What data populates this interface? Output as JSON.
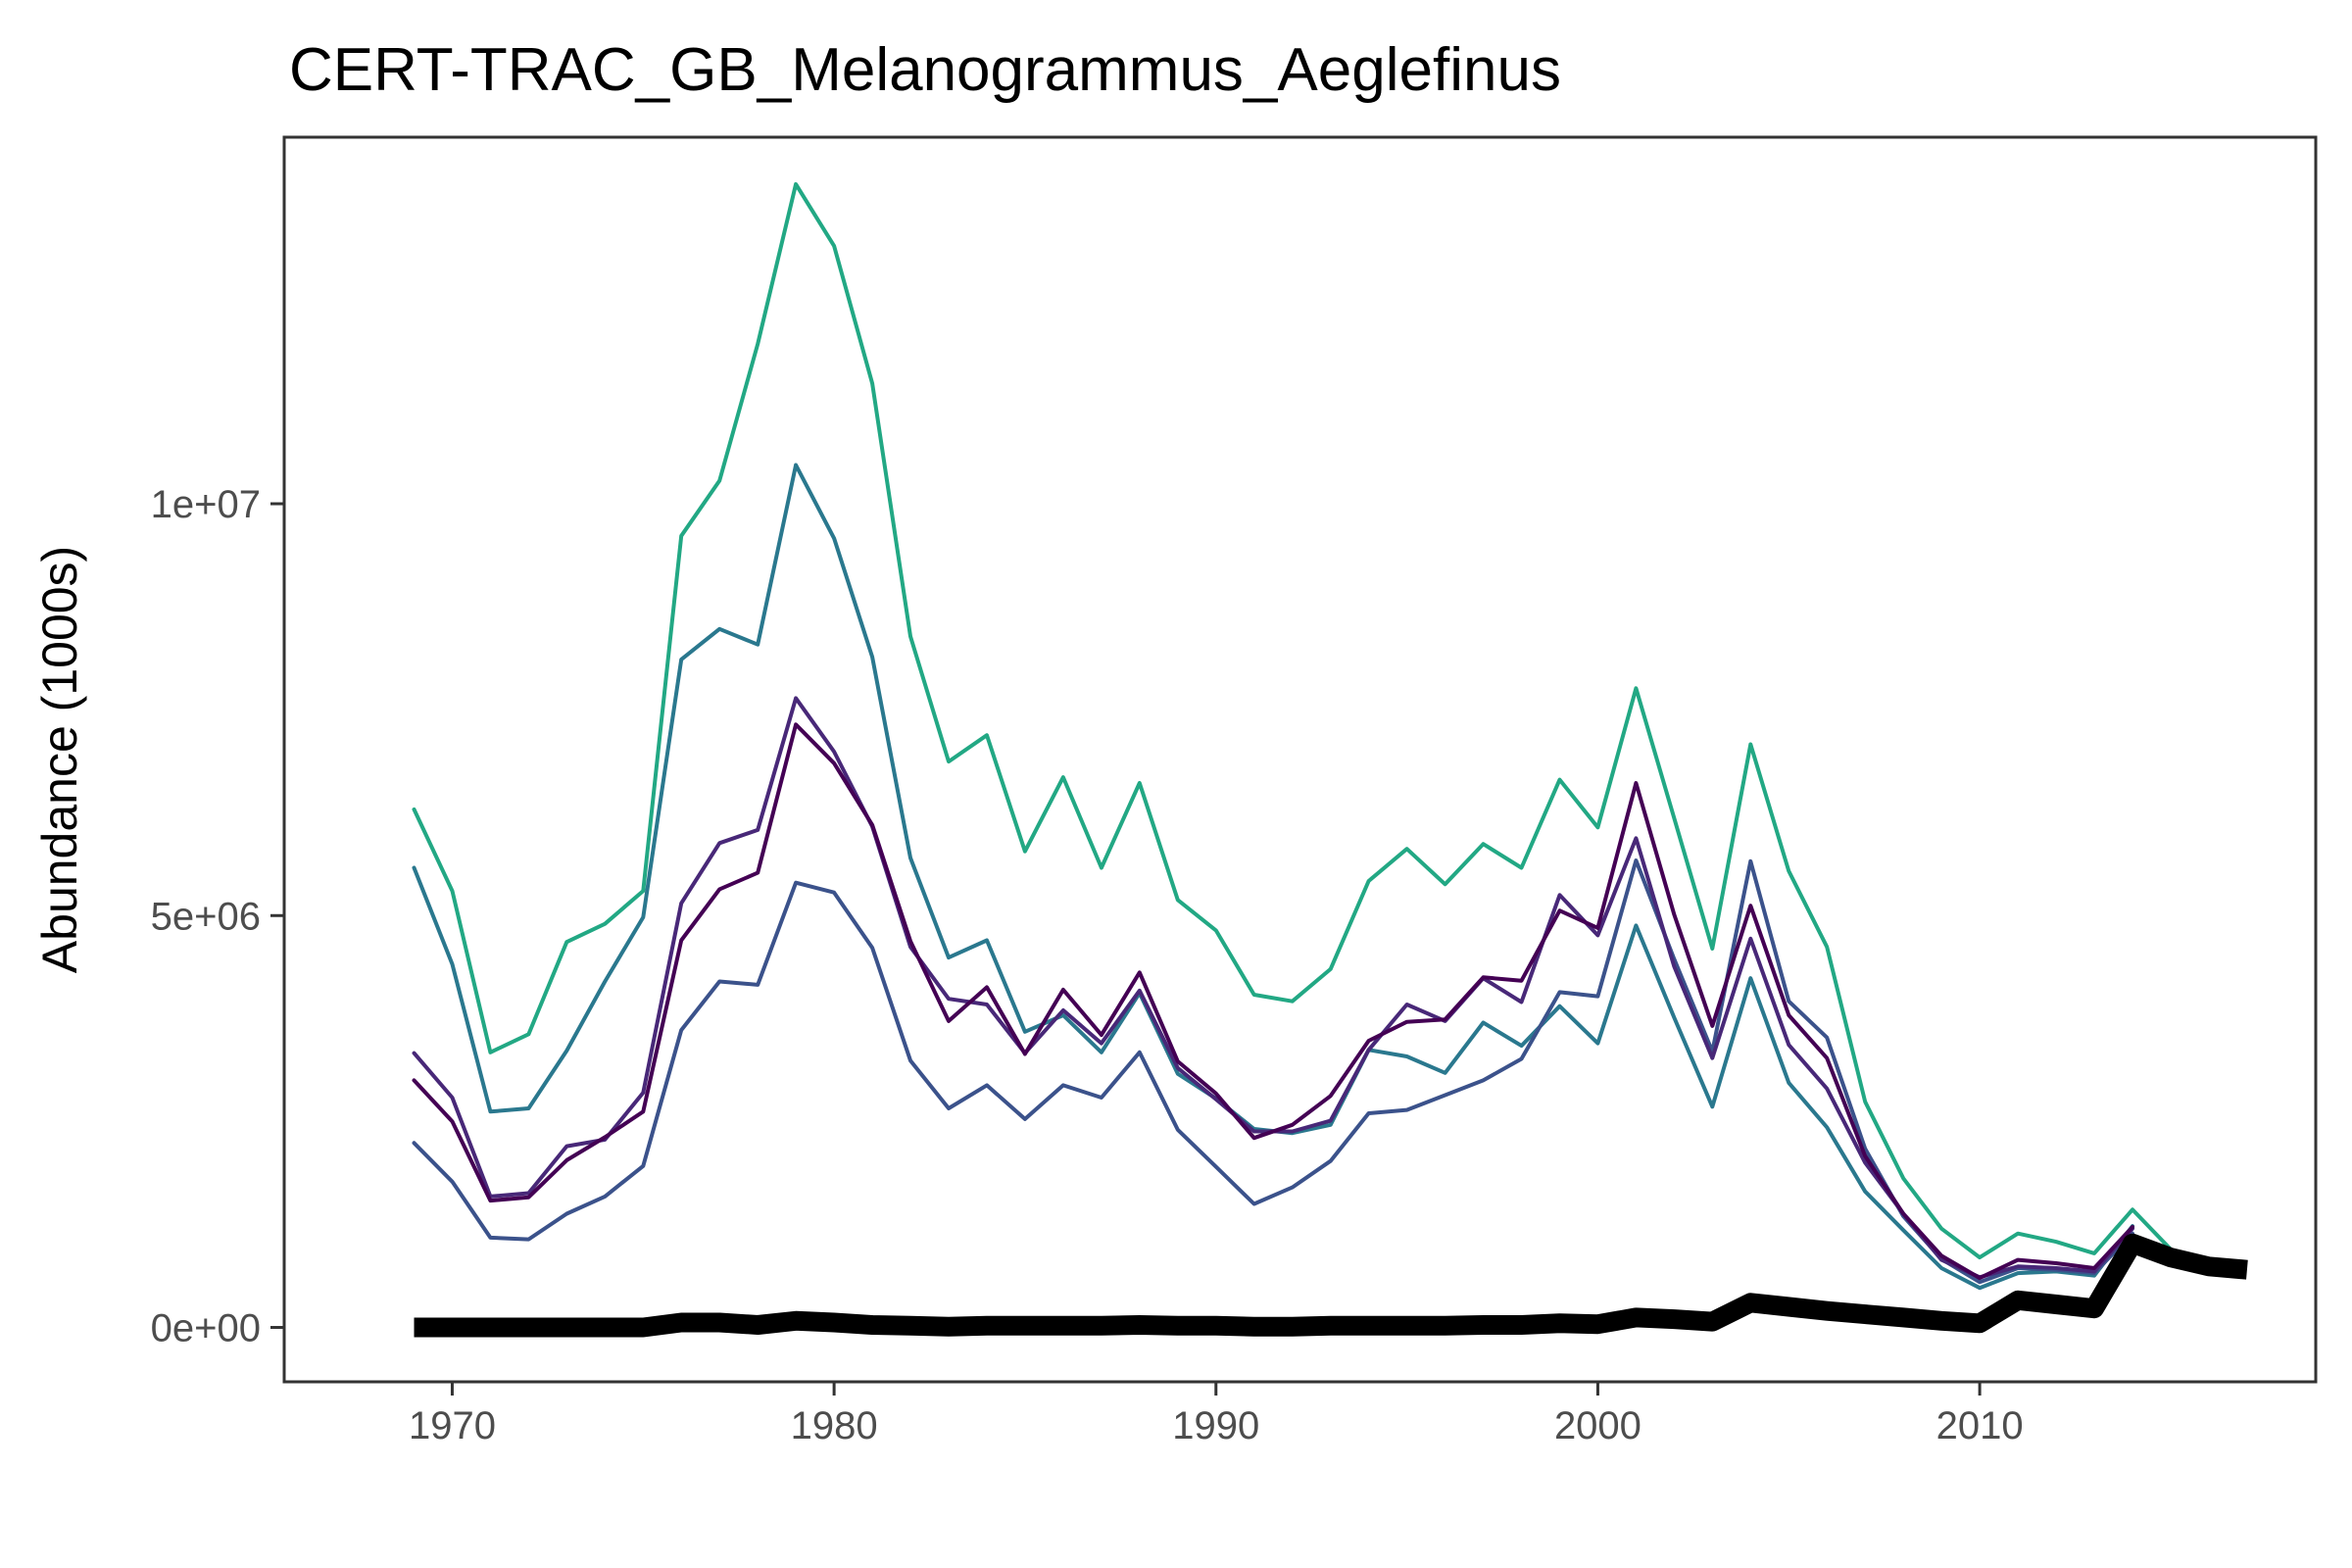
{
  "chart_data": {
    "type": "line",
    "title": "CERT-TRAC_GB_Melanogrammus_Aeglefinus",
    "xlabel": "",
    "ylabel": "Abundance (1000s)",
    "xlim": [
      1965.6,
      2018.8
    ],
    "ylim": [
      -660000,
      14450000
    ],
    "x_ticks": [
      1970,
      1980,
      1990,
      2000,
      2010
    ],
    "x_tick_labels": [
      "1970",
      "1980",
      "1990",
      "2000",
      "2010"
    ],
    "y_ticks": [
      0,
      5000000,
      10000000
    ],
    "y_tick_labels": [
      "0e+00",
      "5e+06",
      "1e+07"
    ],
    "grid": false,
    "legend": "none",
    "series": [
      {
        "name": "series-1",
        "color": "#22A884",
        "x": [
          1969,
          1970,
          1971,
          1972,
          1973,
          1974,
          1975,
          1976,
          1977,
          1978,
          1979,
          1980,
          1981,
          1982,
          1983,
          1984,
          1985,
          1986,
          1987,
          1988,
          1989,
          1990,
          1991,
          1992,
          1993,
          1994,
          1995,
          1996,
          1997,
          1998,
          1999,
          2000,
          2001,
          2002,
          2003,
          2004,
          2005,
          2006,
          2007,
          2008,
          2009,
          2010,
          2011,
          2012,
          2013,
          2014,
          2015
        ],
        "values": [
          6290000,
          5300000,
          3340000,
          3560000,
          4680000,
          4900000,
          5300000,
          9610000,
          10280000,
          11940000,
          13880000,
          13130000,
          11460000,
          8390000,
          6870000,
          7190000,
          5780000,
          6680000,
          5580000,
          6610000,
          5190000,
          4820000,
          4040000,
          3960000,
          4350000,
          5420000,
          5810000,
          5380000,
          5870000,
          5580000,
          6650000,
          6070000,
          7760000,
          6180000,
          4600000,
          7080000,
          5540000,
          4620000,
          2740000,
          1810000,
          1200000,
          850000,
          1140000,
          1040000,
          900000,
          1430000,
          950000
        ]
      },
      {
        "name": "series-2",
        "color": "#2A788E",
        "x": [
          1969,
          1970,
          1971,
          1972,
          1973,
          1974,
          1975,
          1976,
          1977,
          1978,
          1979,
          1980,
          1981,
          1982,
          1983,
          1984,
          1985,
          1986,
          1987,
          1988,
          1989,
          1990,
          1991,
          1992,
          1993,
          1994,
          1995,
          1996,
          1997,
          1998,
          1999,
          2000,
          2001,
          2002,
          2003,
          2004,
          2005,
          2006,
          2007,
          2008,
          2009,
          2010,
          2011,
          2012,
          2013,
          2014
        ],
        "values": [
          5580000,
          4410000,
          2620000,
          2660000,
          3360000,
          4200000,
          4980000,
          8110000,
          8480000,
          8290000,
          10470000,
          9580000,
          8140000,
          5700000,
          4490000,
          4700000,
          3590000,
          3790000,
          3340000,
          4060000,
          3080000,
          2780000,
          2410000,
          2360000,
          2460000,
          3370000,
          3290000,
          3090000,
          3700000,
          3420000,
          3900000,
          3450000,
          4880000,
          3760000,
          2680000,
          4240000,
          2970000,
          2430000,
          1650000,
          1180000,
          720000,
          480000,
          660000,
          680000,
          630000,
          1230000
        ]
      },
      {
        "name": "series-3",
        "color": "#3B528B",
        "x": [
          1969,
          1970,
          1971,
          1972,
          1973,
          1974,
          1975,
          1976,
          1977,
          1978,
          1979,
          1980,
          1981,
          1982,
          1983,
          1984,
          1985,
          1986,
          1987,
          1988,
          1989,
          1990,
          1991,
          1992,
          1993,
          1994,
          1995,
          1996,
          1997,
          1998,
          1999,
          2000,
          2001,
          2002,
          2003,
          2004,
          2005,
          2006,
          2007,
          2008,
          2009,
          2010,
          2011,
          2012,
          2013,
          2014
        ],
        "values": [
          2240000,
          1770000,
          1090000,
          1070000,
          1380000,
          1590000,
          1960000,
          3610000,
          4200000,
          4160000,
          5400000,
          5280000,
          4610000,
          3240000,
          2660000,
          2940000,
          2530000,
          2940000,
          2790000,
          3340000,
          2400000,
          1950000,
          1500000,
          1700000,
          2020000,
          2600000,
          2640000,
          2820000,
          3000000,
          3260000,
          4070000,
          4020000,
          5670000,
          4470000,
          3350000,
          5660000,
          3960000,
          3520000,
          2170000,
          1350000,
          830000,
          550000,
          720000,
          700000,
          660000,
          1140000
        ]
      },
      {
        "name": "series-4",
        "color": "#482878",
        "x": [
          1969,
          1970,
          1971,
          1972,
          1973,
          1974,
          1975,
          1976,
          1977,
          1978,
          1979,
          1980,
          1981,
          1982,
          1983,
          1984,
          1985,
          1986,
          1987,
          1988,
          1989,
          1990,
          1991,
          1992,
          1993,
          1994,
          1995,
          1996,
          1997,
          1998,
          1999,
          2000,
          2001,
          2002,
          2003,
          2004,
          2005,
          2006,
          2007,
          2008,
          2009,
          2010,
          2011,
          2012,
          2013,
          2014
        ],
        "values": [
          3330000,
          2790000,
          1590000,
          1630000,
          2200000,
          2280000,
          2850000,
          5150000,
          5880000,
          6040000,
          7640000,
          6990000,
          6080000,
          4620000,
          3990000,
          3920000,
          3330000,
          3850000,
          3450000,
          4090000,
          3150000,
          2770000,
          2380000,
          2380000,
          2510000,
          3370000,
          3920000,
          3720000,
          4240000,
          3950000,
          5250000,
          4760000,
          5940000,
          4380000,
          3270000,
          4720000,
          3430000,
          2900000,
          2000000,
          1380000,
          820000,
          610000,
          740000,
          720000,
          680000,
          1200000
        ]
      },
      {
        "name": "series-5",
        "color": "#440154",
        "x": [
          1969,
          1970,
          1971,
          1972,
          1973,
          1974,
          1975,
          1976,
          1977,
          1978,
          1979,
          1980,
          1981,
          1982,
          1983,
          1984,
          1985,
          1986,
          1987,
          1988,
          1989,
          1990,
          1991,
          1992,
          1993,
          1994,
          1995,
          1996,
          1997,
          1998,
          1999,
          2000,
          2001,
          2002,
          2003,
          2004,
          2005,
          2006,
          2007,
          2008,
          2009,
          2010,
          2011,
          2012,
          2013,
          2014
        ],
        "values": [
          3000000,
          2500000,
          1540000,
          1580000,
          2030000,
          2310000,
          2620000,
          4700000,
          5320000,
          5520000,
          7320000,
          6850000,
          6100000,
          4690000,
          3720000,
          4130000,
          3320000,
          4100000,
          3550000,
          4310000,
          3230000,
          2840000,
          2300000,
          2460000,
          2810000,
          3480000,
          3710000,
          3740000,
          4250000,
          4210000,
          5060000,
          4850000,
          6610000,
          5010000,
          3660000,
          5120000,
          3790000,
          3270000,
          2080000,
          1380000,
          870000,
          600000,
          820000,
          780000,
          720000,
          1220000
        ]
      },
      {
        "name": "observed-catch",
        "color": "#000000",
        "x": [
          1969,
          1970,
          1971,
          1972,
          1973,
          1974,
          1975,
          1976,
          1977,
          1978,
          1979,
          1980,
          1981,
          1982,
          1983,
          1984,
          1985,
          1986,
          1987,
          1988,
          1989,
          1990,
          1991,
          1992,
          1993,
          1994,
          1995,
          1996,
          1997,
          1998,
          1999,
          2000,
          2001,
          2002,
          2003,
          2004,
          2005,
          2006,
          2007,
          2008,
          2009,
          2010,
          2011,
          2012,
          2013,
          2014,
          2015,
          2016,
          2017
        ],
        "values": [
          0,
          0,
          0,
          0,
          0,
          0,
          0,
          60000,
          60000,
          30000,
          80000,
          60000,
          30000,
          20000,
          10000,
          20000,
          20000,
          20000,
          20000,
          30000,
          20000,
          20000,
          10000,
          10000,
          20000,
          20000,
          20000,
          20000,
          30000,
          30000,
          50000,
          40000,
          120000,
          100000,
          70000,
          300000,
          250000,
          200000,
          160000,
          120000,
          80000,
          50000,
          330000,
          280000,
          230000,
          1020000,
          850000,
          740000,
          700000
        ]
      }
    ]
  }
}
